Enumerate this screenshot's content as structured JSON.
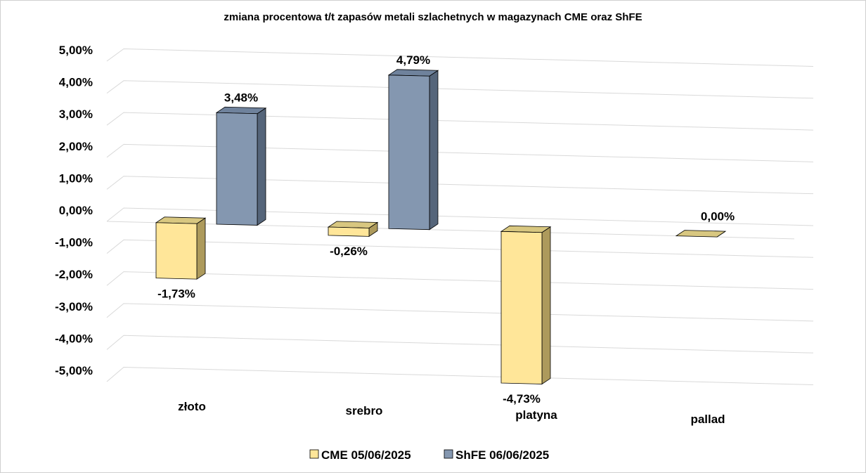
{
  "chart_data": {
    "type": "bar",
    "title": "zmiana procentowa t/t zapasów metali szlachetnych w magazynach CME oraz ShFE",
    "categories": [
      "złoto",
      "srebro",
      "platyna",
      "pallad"
    ],
    "series": [
      {
        "name": "CME 05/06/2025",
        "values": [
          -1.73,
          -0.26,
          -4.73,
          0.0
        ],
        "labels": [
          "-1,73%",
          "-0,26%",
          "-4,73%",
          "0,00%"
        ],
        "color": "#FFE699"
      },
      {
        "name": "ShFE 06/06/2025",
        "values": [
          3.48,
          4.79,
          null,
          null
        ],
        "labels": [
          "3,48%",
          "4,79%",
          "",
          ""
        ],
        "color": "#8497B0"
      }
    ],
    "ylim": [
      -5,
      5
    ],
    "yticks": [
      5,
      4,
      3,
      2,
      1,
      0,
      -1,
      -2,
      -3,
      -4,
      -5
    ],
    "ytick_labels": [
      "5,00%",
      "4,00%",
      "3,00%",
      "2,00%",
      "1,00%",
      "0,00%",
      "-1,00%",
      "-2,00%",
      "-3,00%",
      "-4,00%",
      "-5,00%"
    ],
    "xlabel": "",
    "ylabel": "",
    "grid": true,
    "legend_position": "bottom"
  }
}
